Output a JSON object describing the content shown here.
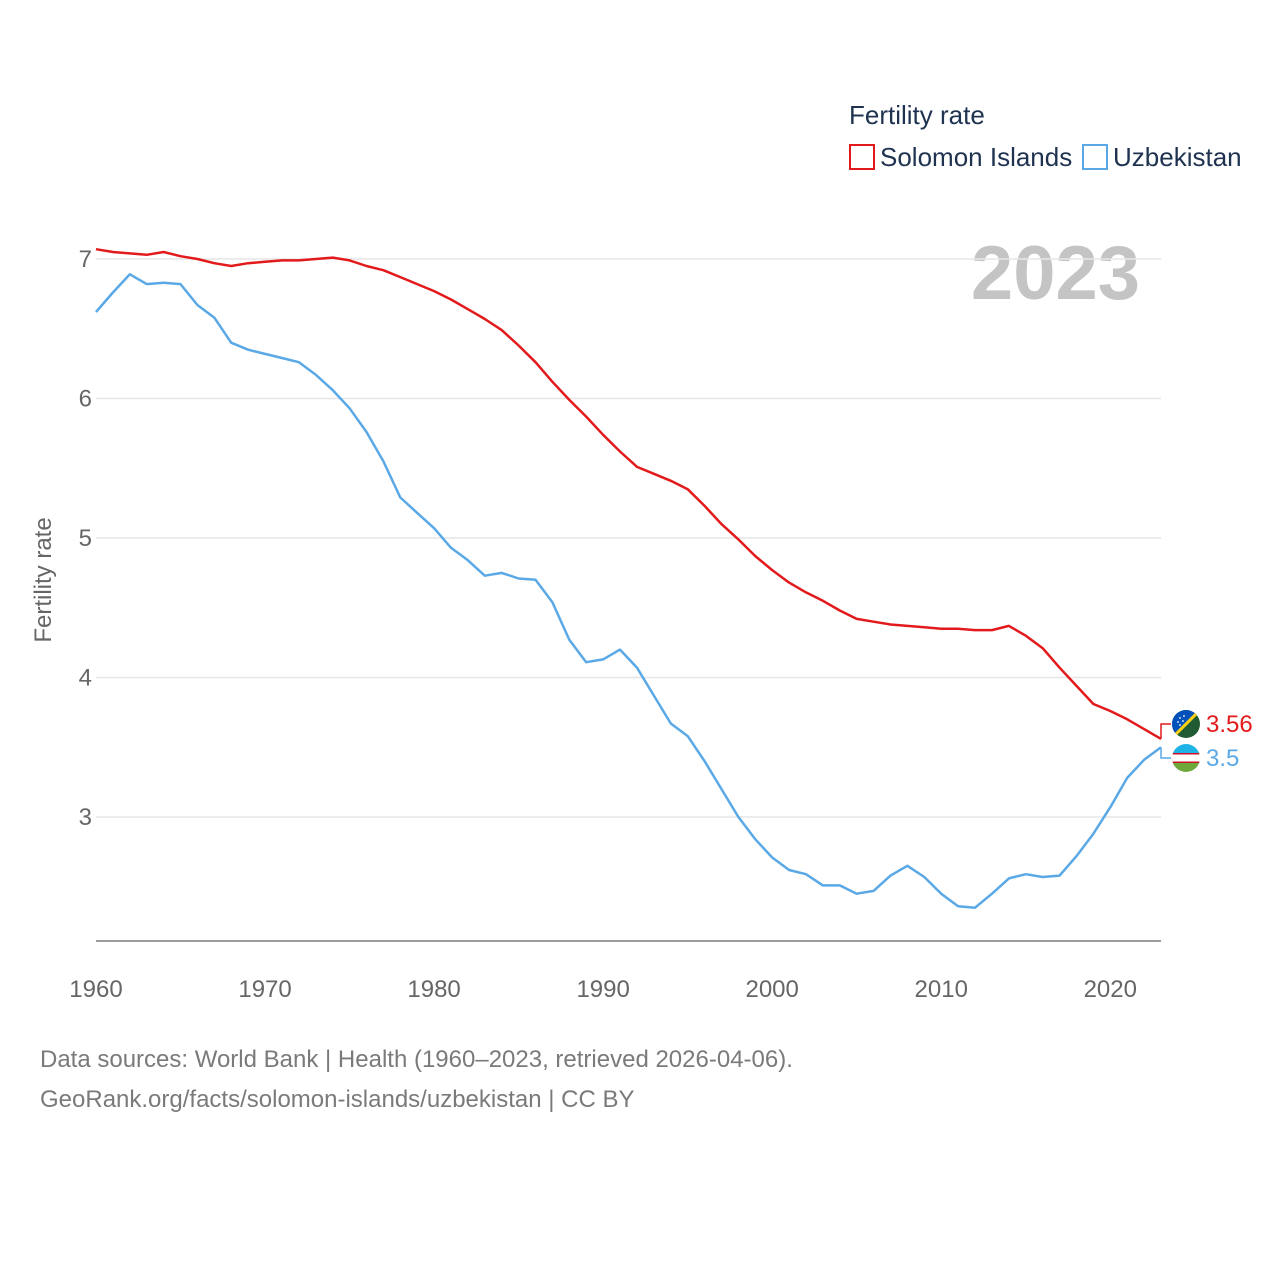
{
  "legend": {
    "title": "Fertility rate"
  },
  "footer": {
    "sources": "Data sources: World Bank | Health (1960–2023, retrieved 2026-04-06).",
    "link": "GeoRank.org/facts/solomon-islands/uzbekistan | CC BY"
  },
  "chart_data": {
    "type": "line",
    "title": "",
    "year_label": "2023",
    "xlabel": "",
    "ylabel": "Fertility rate",
    "xlim": [
      1960,
      2023
    ],
    "ylim": [
      2.15,
      7.25
    ],
    "x_ticks": [
      1960,
      1970,
      1980,
      1990,
      2000,
      2010,
      2020
    ],
    "y_ticks": [
      3,
      4,
      5,
      6,
      7
    ],
    "grid": true,
    "legend_position": "top-right",
    "x": [
      1960,
      1961,
      1962,
      1963,
      1964,
      1965,
      1966,
      1967,
      1968,
      1969,
      1970,
      1971,
      1972,
      1973,
      1974,
      1975,
      1976,
      1977,
      1978,
      1979,
      1980,
      1981,
      1982,
      1983,
      1984,
      1985,
      1986,
      1987,
      1988,
      1989,
      1990,
      1991,
      1992,
      1993,
      1994,
      1995,
      1996,
      1997,
      1998,
      1999,
      2000,
      2001,
      2002,
      2003,
      2004,
      2005,
      2006,
      2007,
      2008,
      2009,
      2010,
      2011,
      2012,
      2013,
      2014,
      2015,
      2016,
      2017,
      2018,
      2019,
      2020,
      2021,
      2022,
      2023
    ],
    "series": [
      {
        "name": "Solomon Islands",
        "color": "#e31a1c",
        "end_label": "3.56",
        "flag": "solomon-islands-flag-icon",
        "values": [
          7.07,
          7.05,
          7.04,
          7.03,
          7.05,
          7.02,
          7.0,
          6.97,
          6.95,
          6.97,
          6.98,
          6.99,
          6.99,
          7.0,
          7.01,
          6.99,
          6.95,
          6.92,
          6.87,
          6.82,
          6.77,
          6.71,
          6.64,
          6.57,
          6.49,
          6.38,
          6.26,
          6.12,
          5.99,
          5.87,
          5.74,
          5.62,
          5.51,
          5.46,
          5.41,
          5.35,
          5.23,
          5.1,
          4.99,
          4.87,
          4.77,
          4.68,
          4.61,
          4.55,
          4.48,
          4.42,
          4.4,
          4.38,
          4.37,
          4.36,
          4.35,
          4.35,
          4.34,
          4.34,
          4.37,
          4.3,
          4.21,
          4.07,
          3.94,
          3.81,
          3.76,
          3.7,
          3.63,
          3.56
        ]
      },
      {
        "name": "Uzbekistan",
        "color": "#5aa9e6",
        "end_label": "3.5",
        "flag": "uzbekistan-flag-icon",
        "values": [
          6.62,
          6.76,
          6.89,
          6.82,
          6.83,
          6.82,
          6.67,
          6.58,
          6.4,
          6.35,
          6.32,
          6.29,
          6.26,
          6.17,
          6.06,
          5.93,
          5.76,
          5.55,
          5.29,
          5.18,
          5.07,
          4.93,
          4.84,
          4.73,
          4.75,
          4.71,
          4.7,
          4.54,
          4.27,
          4.11,
          4.13,
          4.2,
          4.07,
          3.87,
          3.67,
          3.58,
          3.4,
          3.2,
          3.0,
          2.84,
          2.71,
          2.62,
          2.59,
          2.51,
          2.51,
          2.45,
          2.47,
          2.58,
          2.65,
          2.57,
          2.45,
          2.36,
          2.35,
          2.45,
          2.56,
          2.59,
          2.57,
          2.58,
          2.72,
          2.88,
          3.07,
          3.28,
          3.41,
          3.5
        ]
      }
    ]
  }
}
